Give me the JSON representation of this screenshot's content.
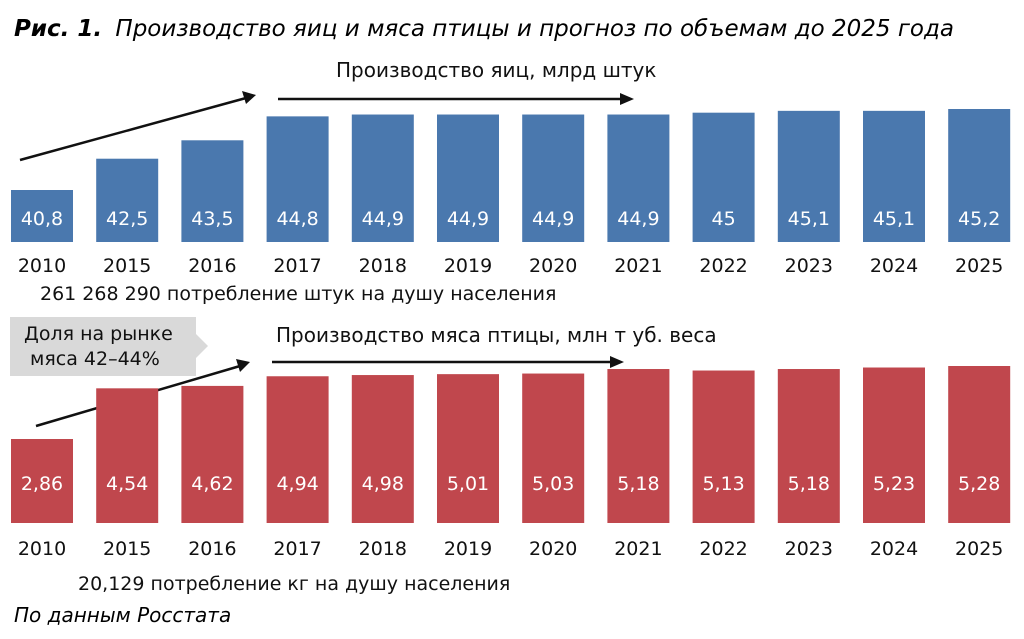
{
  "figure": {
    "label": "Рис. 1.",
    "title": "Производство яиц и мяса птицы и прогноз по объемам до 2025 года",
    "source": "По данным Росстата"
  },
  "chart_data": [
    {
      "type": "bar",
      "title": "Производство яиц, млрд штук",
      "categories": [
        "2010",
        "2015",
        "2016",
        "2017",
        "2018",
        "2019",
        "2020",
        "2021",
        "2022",
        "2023",
        "2024",
        "2025"
      ],
      "values": [
        40.8,
        42.5,
        43.5,
        44.8,
        44.9,
        44.9,
        44.9,
        44.9,
        45,
        45.1,
        45.1,
        45.2
      ],
      "value_labels": [
        "40,8",
        "42,5",
        "43,5",
        "44,8",
        "44,9",
        "44,9",
        "44,9",
        "44,9",
        "45",
        "45,1",
        "45,1",
        "45,2"
      ],
      "color": "#4a78ae",
      "note": "261 268 290 потребление штук на душу населения"
    },
    {
      "type": "bar",
      "title": "Производство мяса птицы, млн т уб. веса",
      "categories": [
        "2010",
        "2015",
        "2016",
        "2017",
        "2018",
        "2019",
        "2020",
        "2021",
        "2022",
        "2023",
        "2024",
        "2025"
      ],
      "values": [
        2.86,
        4.54,
        4.62,
        4.94,
        4.98,
        5.01,
        5.03,
        5.18,
        5.13,
        5.18,
        5.23,
        5.28
      ],
      "value_labels": [
        "2,86",
        "4,54",
        "4,62",
        "4,94",
        "4,98",
        "5,01",
        "5,03",
        "5,18",
        "5,13",
        "5,18",
        "5,23",
        "5,28"
      ],
      "color": "#c0474d",
      "note": "20,129 потребление кг на душу населения",
      "callout": [
        "Доля на рынке",
        "мяса 42–44%"
      ]
    }
  ]
}
